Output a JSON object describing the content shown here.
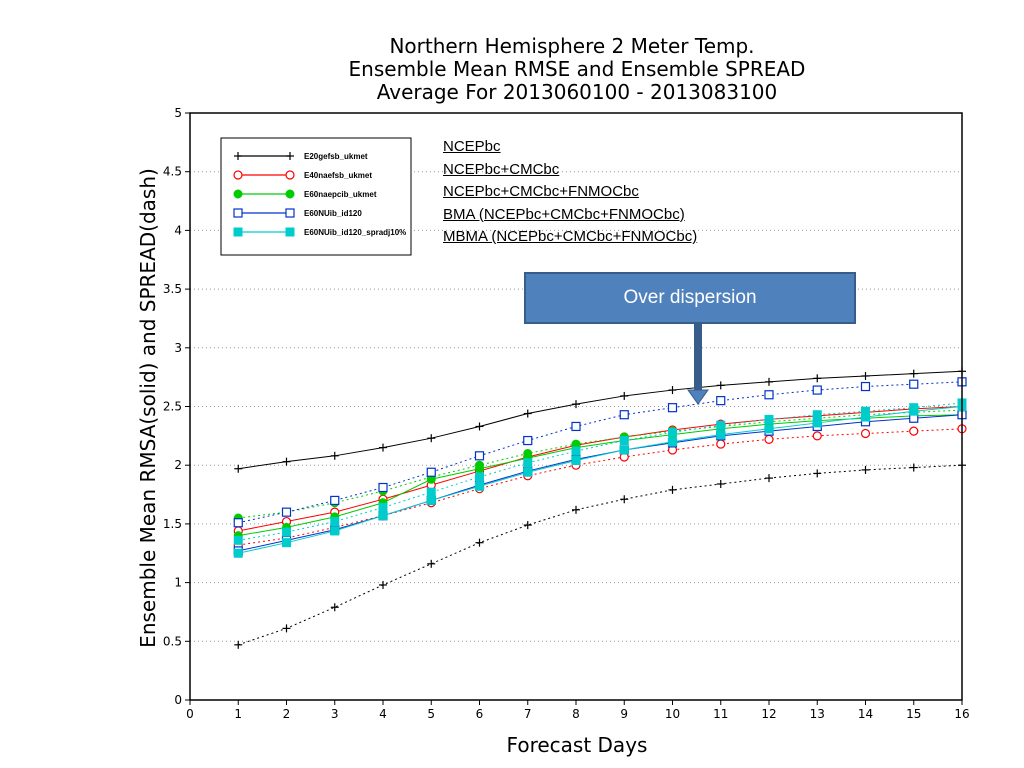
{
  "titles": [
    "Northern Hemisphere 2 Meter Temp.",
    "Ensemble Mean RMSE and Ensemble SPREAD",
    "Average For 2013060100 - 2013083100"
  ],
  "annotations": [
    "NCEPbc",
    "NCEPbc+CMCbc",
    "NCEPbc+CMCbc+FNMOCbc",
    "BMA (NCEPbc+CMCbc+FNMOCbc)",
    "MBMA (NCEPbc+CMCbc+FNMOCbc)"
  ],
  "callout": {
    "text": "Over dispersion",
    "color": "#4f81bd"
  },
  "chart_data": {
    "type": "line",
    "xlabel": "Forecast Days",
    "ylabel": "Ensemble Mean RMSA(solid) and SPREAD(dash)",
    "xlim": [
      0,
      16
    ],
    "ylim": [
      0,
      5
    ],
    "xticks": [
      0,
      1,
      2,
      3,
      4,
      5,
      6,
      7,
      8,
      9,
      10,
      11,
      12,
      13,
      14,
      15,
      16
    ],
    "yticks": [
      "0",
      "0.5",
      "1",
      "1.5",
      "2",
      "2.5",
      "3",
      "3.5",
      "4",
      "4.5",
      "5"
    ],
    "grid": "horizontal dotted",
    "legend_position": "top-left",
    "x": [
      1,
      2,
      3,
      4,
      5,
      6,
      7,
      8,
      9,
      10,
      11,
      12,
      13,
      14,
      15,
      16
    ],
    "series": [
      {
        "name": "E20gefsb_ukmet",
        "color": "#000000",
        "marker": "plus",
        "rmse": [
          1.97,
          2.03,
          2.08,
          2.15,
          2.23,
          2.33,
          2.44,
          2.52,
          2.59,
          2.64,
          2.68,
          2.71,
          2.74,
          2.76,
          2.78,
          2.8
        ],
        "spread": [
          0.47,
          0.61,
          0.79,
          0.98,
          1.16,
          1.34,
          1.49,
          1.62,
          1.71,
          1.79,
          1.84,
          1.89,
          1.93,
          1.96,
          1.98,
          2.0
        ]
      },
      {
        "name": "E40naefsb_ukmet",
        "color": "#ff0000",
        "marker": "open-circle",
        "rmse": [
          1.44,
          1.52,
          1.6,
          1.71,
          1.83,
          1.95,
          2.07,
          2.17,
          2.24,
          2.3,
          2.35,
          2.39,
          2.42,
          2.45,
          2.48,
          2.5
        ],
        "spread": [
          1.32,
          1.38,
          1.47,
          1.57,
          1.68,
          1.8,
          1.91,
          2.0,
          2.07,
          2.13,
          2.18,
          2.22,
          2.25,
          2.27,
          2.29,
          2.31
        ]
      },
      {
        "name": "E60naepcib_ukmet",
        "color": "#00cc00",
        "marker": "filled-circle",
        "rmse": [
          1.4,
          1.47,
          1.56,
          1.68,
          1.88,
          1.97,
          2.06,
          2.15,
          2.21,
          2.26,
          2.31,
          2.35,
          2.38,
          2.4,
          2.42,
          2.43
        ],
        "spread": [
          1.55,
          1.6,
          1.68,
          1.78,
          1.9,
          2.0,
          2.1,
          2.18,
          2.24,
          2.29,
          2.33,
          2.37,
          2.4,
          2.43,
          2.45,
          2.47
        ]
      },
      {
        "name": "E60NUib_id120",
        "color": "#0033cc",
        "marker": "open-square",
        "rmse": [
          1.27,
          1.36,
          1.45,
          1.57,
          1.7,
          1.83,
          1.95,
          2.05,
          2.13,
          2.19,
          2.25,
          2.29,
          2.33,
          2.37,
          2.4,
          2.43
        ],
        "spread": [
          1.51,
          1.6,
          1.7,
          1.81,
          1.94,
          2.08,
          2.21,
          2.33,
          2.43,
          2.49,
          2.55,
          2.6,
          2.64,
          2.67,
          2.69,
          2.71
        ]
      },
      {
        "name": "E60NUib_id120_spradj10%",
        "color": "#00cccc",
        "marker": "filled-square",
        "rmse": [
          1.25,
          1.34,
          1.44,
          1.57,
          1.7,
          1.82,
          1.94,
          2.04,
          2.13,
          2.2,
          2.26,
          2.31,
          2.36,
          2.41,
          2.46,
          2.5
        ],
        "spread": [
          1.36,
          1.43,
          1.52,
          1.64,
          1.77,
          1.9,
          2.02,
          2.12,
          2.21,
          2.28,
          2.34,
          2.39,
          2.43,
          2.46,
          2.49,
          2.53
        ]
      }
    ]
  }
}
